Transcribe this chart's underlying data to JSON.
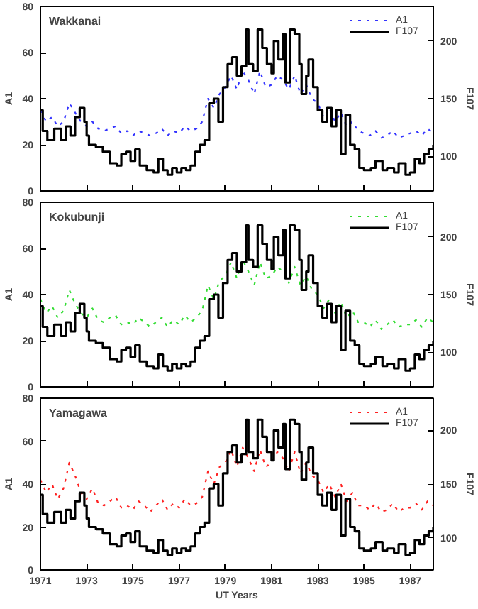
{
  "chart_data": [
    {
      "type": "line",
      "title": "Wakkanai",
      "ylabel": "A1",
      "y2label": "F107",
      "legend": "top right",
      "grid": false,
      "tick_labels": "y",
      "xlim": [
        1971,
        1988
      ],
      "xticks": [
        1971,
        1973,
        1975,
        1977,
        1979,
        1981,
        1983,
        1985,
        1987
      ],
      "ylim": [
        0,
        80
      ],
      "yticks": [
        0,
        20,
        40,
        60,
        80
      ],
      "y2lim": [
        70,
        230
      ],
      "y2ticks": [
        100,
        150,
        200
      ],
      "x": [
        1971,
        1971.25,
        1971.5,
        1971.75,
        1972,
        1972.25,
        1972.5,
        1972.75,
        1973,
        1973.25,
        1973.5,
        1973.75,
        1974,
        1974.25,
        1974.5,
        1974.75,
        1975,
        1975.25,
        1975.5,
        1975.75,
        1976,
        1976.25,
        1976.5,
        1976.75,
        1977,
        1977.25,
        1977.5,
        1977.75,
        1978,
        1978.25,
        1978.5,
        1978.75,
        1979,
        1979.25,
        1979.5,
        1979.75,
        1980,
        1980.25,
        1980.5,
        1980.75,
        1981,
        1981.25,
        1981.5,
        1981.75,
        1982,
        1982.25,
        1982.5,
        1982.75,
        1983,
        1983.25,
        1983.5,
        1983.75,
        1984,
        1984.25,
        1984.5,
        1984.75,
        1985,
        1985.25,
        1985.5,
        1985.75,
        1986,
        1986.25,
        1986.5,
        1986.75,
        1987,
        1987.25,
        1987.5,
        1987.75,
        1988
      ],
      "series": [
        {
          "name": "A1",
          "color": "#3333ff",
          "line_style": "dotted",
          "values": [
            35,
            30,
            32,
            28,
            30,
            38,
            34,
            30,
            28,
            30,
            27,
            26,
            27,
            28,
            25,
            26,
            24,
            26,
            25,
            24,
            25,
            27,
            24,
            26,
            25,
            28,
            26,
            27,
            30,
            40,
            36,
            42,
            45,
            50,
            44,
            52,
            48,
            42,
            52,
            45,
            46,
            50,
            48,
            44,
            50,
            42,
            46,
            40,
            38,
            32,
            36,
            30,
            34,
            28,
            30,
            26,
            25,
            24,
            26,
            23,
            24,
            26,
            23,
            24,
            25,
            26,
            24,
            27,
            25
          ]
        },
        {
          "name": "F107",
          "type": "step",
          "axis": "y2",
          "color": "#000000",
          "line_style": "solid",
          "x": [
            1971,
            1971.1,
            1971.3,
            1971.6,
            1971.9,
            1972.1,
            1972.3,
            1972.5,
            1972.7,
            1972.9,
            1973,
            1973.1,
            1973.4,
            1973.7,
            1974,
            1974.3,
            1974.5,
            1974.7,
            1974.9,
            1975.1,
            1975.3,
            1975.6,
            1975.9,
            1976.1,
            1976.3,
            1976.5,
            1976.7,
            1976.9,
            1977.1,
            1977.3,
            1977.5,
            1977.7,
            1977.9,
            1978.1,
            1978.3,
            1978.5,
            1978.7,
            1978.9,
            1979.1,
            1979.3,
            1979.5,
            1979.7,
            1979.9,
            1980,
            1980.2,
            1980.4,
            1980.6,
            1980.8,
            1981,
            1981.1,
            1981.3,
            1981.5,
            1981.6,
            1981.8,
            1982,
            1982.2,
            1982.3,
            1982.5,
            1982.6,
            1982.8,
            1983,
            1983.2,
            1983.4,
            1983.6,
            1983.8,
            1984,
            1984.2,
            1984.4,
            1984.6,
            1984.8,
            1985,
            1985.3,
            1985.5,
            1985.8,
            1986,
            1986.3,
            1986.5,
            1986.8,
            1987,
            1987.2,
            1987.4,
            1987.6,
            1987.8,
            1988
          ],
          "values": [
            140,
            122,
            114,
            124,
            114,
            126,
            118,
            134,
            142,
            130,
            118,
            110,
            108,
            104,
            94,
            92,
            102,
            104,
            96,
            106,
            92,
            88,
            86,
            98,
            88,
            84,
            90,
            86,
            90,
            88,
            92,
            104,
            110,
            114,
            146,
            150,
            130,
            160,
            180,
            186,
            170,
            178,
            210,
            180,
            174,
            210,
            194,
            180,
            172,
            200,
            184,
            206,
            164,
            210,
            206,
            180,
            154,
            170,
            184,
            160,
            140,
            130,
            142,
            126,
            140,
            102,
            136,
            110,
            106,
            90,
            88,
            90,
            96,
            88,
            90,
            86,
            94,
            84,
            86,
            98,
            94,
            102,
            106,
            110
          ]
        }
      ]
    },
    {
      "type": "line",
      "title": "Kokubunji",
      "ylabel": "A1",
      "y2label": "F107",
      "legend": "top right",
      "grid": false,
      "tick_labels": "y",
      "xlim": [
        1971,
        1988
      ],
      "xticks": [
        1971,
        1973,
        1975,
        1977,
        1979,
        1981,
        1983,
        1985,
        1987
      ],
      "ylim": [
        0,
        80
      ],
      "yticks": [
        0,
        20,
        40,
        60,
        80
      ],
      "y2lim": [
        70,
        230
      ],
      "y2ticks": [
        100,
        150,
        200
      ],
      "x": [
        1971,
        1971.25,
        1971.5,
        1971.75,
        1972,
        1972.25,
        1972.5,
        1972.75,
        1973,
        1973.25,
        1973.5,
        1973.75,
        1974,
        1974.25,
        1974.5,
        1974.75,
        1975,
        1975.25,
        1975.5,
        1975.75,
        1976,
        1976.25,
        1976.5,
        1976.75,
        1977,
        1977.25,
        1977.5,
        1977.75,
        1978,
        1978.25,
        1978.5,
        1978.75,
        1979,
        1979.25,
        1979.5,
        1979.75,
        1980,
        1980.25,
        1980.5,
        1980.75,
        1981,
        1981.25,
        1981.5,
        1981.75,
        1982,
        1982.25,
        1982.5,
        1982.75,
        1983,
        1983.25,
        1983.5,
        1983.75,
        1984,
        1984.25,
        1984.5,
        1984.75,
        1985,
        1985.25,
        1985.5,
        1985.75,
        1986,
        1986.25,
        1986.5,
        1986.75,
        1987,
        1987.25,
        1987.5,
        1987.75,
        1988
      ],
      "series": [
        {
          "name": "A1",
          "color": "#33dd33",
          "line_style": "dotted",
          "values": [
            38,
            32,
            35,
            30,
            33,
            42,
            36,
            32,
            30,
            34,
            29,
            28,
            30,
            31,
            27,
            28,
            27,
            30,
            28,
            26,
            28,
            30,
            26,
            29,
            27,
            31,
            28,
            30,
            33,
            44,
            38,
            46,
            48,
            54,
            47,
            55,
            50,
            44,
            54,
            47,
            48,
            52,
            50,
            45,
            52,
            44,
            48,
            42,
            40,
            34,
            38,
            32,
            37,
            30,
            33,
            28,
            28,
            26,
            29,
            25,
            27,
            29,
            26,
            27,
            27,
            29,
            26,
            30,
            28
          ]
        },
        {
          "name": "F107",
          "type": "step",
          "axis": "y2",
          "color": "#000000",
          "line_style": "solid",
          "x": [
            1971,
            1971.1,
            1971.3,
            1971.6,
            1971.9,
            1972.1,
            1972.3,
            1972.5,
            1972.7,
            1972.9,
            1973,
            1973.1,
            1973.4,
            1973.7,
            1974,
            1974.3,
            1974.5,
            1974.7,
            1974.9,
            1975.1,
            1975.3,
            1975.6,
            1975.9,
            1976.1,
            1976.3,
            1976.5,
            1976.7,
            1976.9,
            1977.1,
            1977.3,
            1977.5,
            1977.7,
            1977.9,
            1978.1,
            1978.3,
            1978.5,
            1978.7,
            1978.9,
            1979.1,
            1979.3,
            1979.5,
            1979.7,
            1979.9,
            1980,
            1980.2,
            1980.4,
            1980.6,
            1980.8,
            1981,
            1981.1,
            1981.3,
            1981.5,
            1981.6,
            1981.8,
            1982,
            1982.2,
            1982.3,
            1982.5,
            1982.6,
            1982.8,
            1983,
            1983.2,
            1983.4,
            1983.6,
            1983.8,
            1984,
            1984.2,
            1984.4,
            1984.6,
            1984.8,
            1985,
            1985.3,
            1985.5,
            1985.8,
            1986,
            1986.3,
            1986.5,
            1986.8,
            1987,
            1987.2,
            1987.4,
            1987.6,
            1987.8,
            1988
          ],
          "values": [
            140,
            122,
            114,
            124,
            114,
            126,
            118,
            134,
            142,
            130,
            118,
            110,
            108,
            104,
            94,
            92,
            102,
            104,
            96,
            106,
            92,
            88,
            86,
            98,
            88,
            84,
            90,
            86,
            90,
            88,
            92,
            104,
            110,
            114,
            146,
            150,
            130,
            160,
            180,
            186,
            170,
            178,
            210,
            180,
            174,
            210,
            194,
            180,
            172,
            200,
            184,
            206,
            164,
            210,
            206,
            180,
            154,
            170,
            184,
            160,
            140,
            130,
            142,
            126,
            140,
            102,
            136,
            110,
            106,
            90,
            88,
            90,
            96,
            88,
            90,
            86,
            94,
            84,
            86,
            98,
            94,
            102,
            106,
            110
          ]
        }
      ]
    },
    {
      "type": "line",
      "title": "Yamagawa",
      "xlabel": "UT Years",
      "ylabel": "A1",
      "y2label": "F107",
      "legend": "top right",
      "grid": false,
      "xlim": [
        1971,
        1988
      ],
      "xticks": [
        1971,
        1973,
        1975,
        1977,
        1979,
        1981,
        1983,
        1985,
        1987
      ],
      "ylim": [
        0,
        80
      ],
      "yticks": [
        0,
        20,
        40,
        60,
        80
      ],
      "y2lim": [
        70,
        230
      ],
      "y2ticks": [
        100,
        150,
        200
      ],
      "x": [
        1971,
        1971.25,
        1971.5,
        1971.75,
        1972,
        1972.25,
        1972.5,
        1972.75,
        1973,
        1973.25,
        1973.5,
        1973.75,
        1974,
        1974.25,
        1974.5,
        1974.75,
        1975,
        1975.25,
        1975.5,
        1975.75,
        1976,
        1976.25,
        1976.5,
        1976.75,
        1977,
        1977.25,
        1977.5,
        1977.75,
        1978,
        1978.25,
        1978.5,
        1978.75,
        1979,
        1979.25,
        1979.5,
        1979.75,
        1980,
        1980.25,
        1980.5,
        1980.75,
        1981,
        1981.25,
        1981.5,
        1981.75,
        1982,
        1982.25,
        1982.5,
        1982.75,
        1983,
        1983.25,
        1983.5,
        1983.75,
        1984,
        1984.25,
        1984.5,
        1984.75,
        1985,
        1985.25,
        1985.5,
        1985.75,
        1986,
        1986.25,
        1986.5,
        1986.75,
        1987,
        1987.25,
        1987.5,
        1987.75,
        1988
      ],
      "series": [
        {
          "name": "A1",
          "color": "#ff2222",
          "line_style": "dotted",
          "values": [
            42,
            36,
            40,
            33,
            38,
            50,
            44,
            36,
            33,
            38,
            31,
            30,
            32,
            34,
            29,
            30,
            28,
            32,
            30,
            27,
            30,
            33,
            28,
            31,
            29,
            33,
            30,
            31,
            34,
            46,
            40,
            48,
            50,
            56,
            48,
            57,
            52,
            46,
            56,
            48,
            50,
            55,
            52,
            46,
            55,
            45,
            50,
            44,
            42,
            36,
            40,
            34,
            40,
            32,
            36,
            30,
            30,
            28,
            31,
            27,
            28,
            31,
            27,
            29,
            29,
            31,
            28,
            32,
            30
          ]
        },
        {
          "name": "F107",
          "type": "step",
          "axis": "y2",
          "color": "#000000",
          "line_style": "solid",
          "x": [
            1971,
            1971.1,
            1971.3,
            1971.6,
            1971.9,
            1972.1,
            1972.3,
            1972.5,
            1972.7,
            1972.9,
            1973,
            1973.1,
            1973.4,
            1973.7,
            1974,
            1974.3,
            1974.5,
            1974.7,
            1974.9,
            1975.1,
            1975.3,
            1975.6,
            1975.9,
            1976.1,
            1976.3,
            1976.5,
            1976.7,
            1976.9,
            1977.1,
            1977.3,
            1977.5,
            1977.7,
            1977.9,
            1978.1,
            1978.3,
            1978.5,
            1978.7,
            1978.9,
            1979.1,
            1979.3,
            1979.5,
            1979.7,
            1979.9,
            1980,
            1980.2,
            1980.4,
            1980.6,
            1980.8,
            1981,
            1981.1,
            1981.3,
            1981.5,
            1981.6,
            1981.8,
            1982,
            1982.2,
            1982.3,
            1982.5,
            1982.6,
            1982.8,
            1983,
            1983.2,
            1983.4,
            1983.6,
            1983.8,
            1984,
            1984.2,
            1984.4,
            1984.6,
            1984.8,
            1985,
            1985.3,
            1985.5,
            1985.8,
            1986,
            1986.3,
            1986.5,
            1986.8,
            1987,
            1987.2,
            1987.4,
            1987.6,
            1987.8,
            1988
          ],
          "values": [
            140,
            122,
            114,
            124,
            114,
            126,
            118,
            134,
            142,
            130,
            118,
            110,
            108,
            104,
            94,
            92,
            102,
            104,
            96,
            106,
            92,
            88,
            86,
            98,
            88,
            84,
            90,
            86,
            90,
            88,
            92,
            104,
            110,
            114,
            146,
            150,
            130,
            160,
            180,
            186,
            170,
            178,
            210,
            180,
            174,
            210,
            194,
            180,
            172,
            200,
            184,
            206,
            164,
            210,
            206,
            180,
            154,
            170,
            184,
            160,
            140,
            130,
            142,
            126,
            140,
            102,
            136,
            110,
            106,
            90,
            88,
            90,
            96,
            88,
            90,
            86,
            94,
            84,
            86,
            98,
            94,
            102,
            106,
            110
          ]
        }
      ]
    }
  ]
}
